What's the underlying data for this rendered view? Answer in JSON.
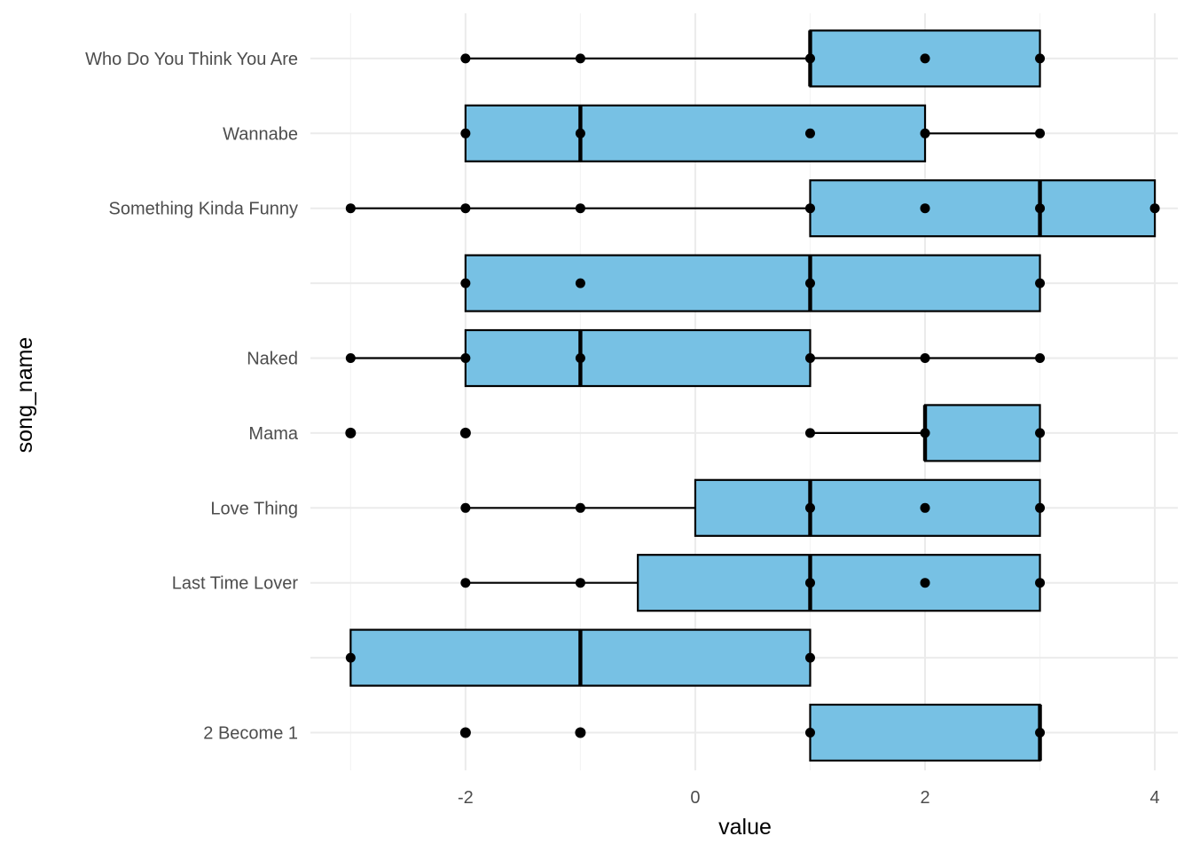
{
  "chart_data": {
    "type": "boxplot",
    "orientation": "horizontal",
    "xlabel": "value",
    "ylabel": "song_name",
    "xlim": [
      -3.35,
      4.2
    ],
    "x_ticks": [
      -2,
      0,
      2,
      4
    ],
    "x_tick_labels": [
      "-2",
      "0",
      "2",
      "4"
    ],
    "grid": true,
    "colors": {
      "box_fill": "#77C1E4",
      "stroke": "#000000",
      "grid_major": "#EBEBEB",
      "grid_minor": "#F4F4F4"
    },
    "categories": [
      {
        "label": "2 Become 1",
        "box": {
          "q1": 1,
          "median": 3,
          "q3": 3,
          "whisker_low": 1,
          "whisker_high": 3
        },
        "outliers": [
          -2,
          -1
        ],
        "points": [
          -2,
          -1,
          1,
          3
        ]
      },
      {
        "label": "",
        "box": {
          "q1": -3,
          "median": -1,
          "q3": 1,
          "whisker_low": -3,
          "whisker_high": 1
        },
        "outliers": [],
        "points": [
          -3,
          1
        ]
      },
      {
        "label": "Last Time Lover",
        "box": {
          "q1": -0.5,
          "median": 1,
          "q3": 3,
          "whisker_low": -2,
          "whisker_high": 3
        },
        "outliers": [],
        "points": [
          -2,
          -1,
          1,
          2,
          3
        ]
      },
      {
        "label": "Love Thing",
        "box": {
          "q1": 0,
          "median": 1,
          "q3": 3,
          "whisker_low": -2,
          "whisker_high": 3
        },
        "outliers": [],
        "points": [
          -2,
          -1,
          1,
          2,
          3
        ]
      },
      {
        "label": "Mama",
        "box": {
          "q1": 2,
          "median": 2,
          "q3": 3,
          "whisker_low": 1,
          "whisker_high": 3
        },
        "outliers": [
          -3,
          -2
        ],
        "points": [
          -3,
          -2,
          1,
          2,
          3
        ]
      },
      {
        "label": "Naked",
        "box": {
          "q1": -2,
          "median": -1,
          "q3": 1,
          "whisker_low": -3,
          "whisker_high": 3
        },
        "outliers": [],
        "points": [
          -3,
          -2,
          -1,
          1,
          2,
          3
        ]
      },
      {
        "label": "",
        "box": {
          "q1": -2,
          "median": 1,
          "q3": 3,
          "whisker_low": -2,
          "whisker_high": 3
        },
        "outliers": [],
        "points": [
          -2,
          -1,
          1,
          3
        ]
      },
      {
        "label": "Something Kinda Funny",
        "box": {
          "q1": 1,
          "median": 3,
          "q3": 4,
          "whisker_low": -3,
          "whisker_high": 4
        },
        "outliers": [],
        "points": [
          -3,
          -2,
          -1,
          1,
          2,
          3,
          4
        ]
      },
      {
        "label": "Wannabe",
        "box": {
          "q1": -2,
          "median": -1,
          "q3": 2,
          "whisker_low": -2,
          "whisker_high": 3
        },
        "outliers": [],
        "points": [
          -2,
          -1,
          1,
          2,
          3
        ]
      },
      {
        "label": "Who Do You Think You Are",
        "box": {
          "q1": 1,
          "median": 1,
          "q3": 3,
          "whisker_low": -2,
          "whisker_high": 3
        },
        "outliers": [],
        "points": [
          -2,
          -1,
          1,
          2,
          3
        ]
      }
    ]
  }
}
